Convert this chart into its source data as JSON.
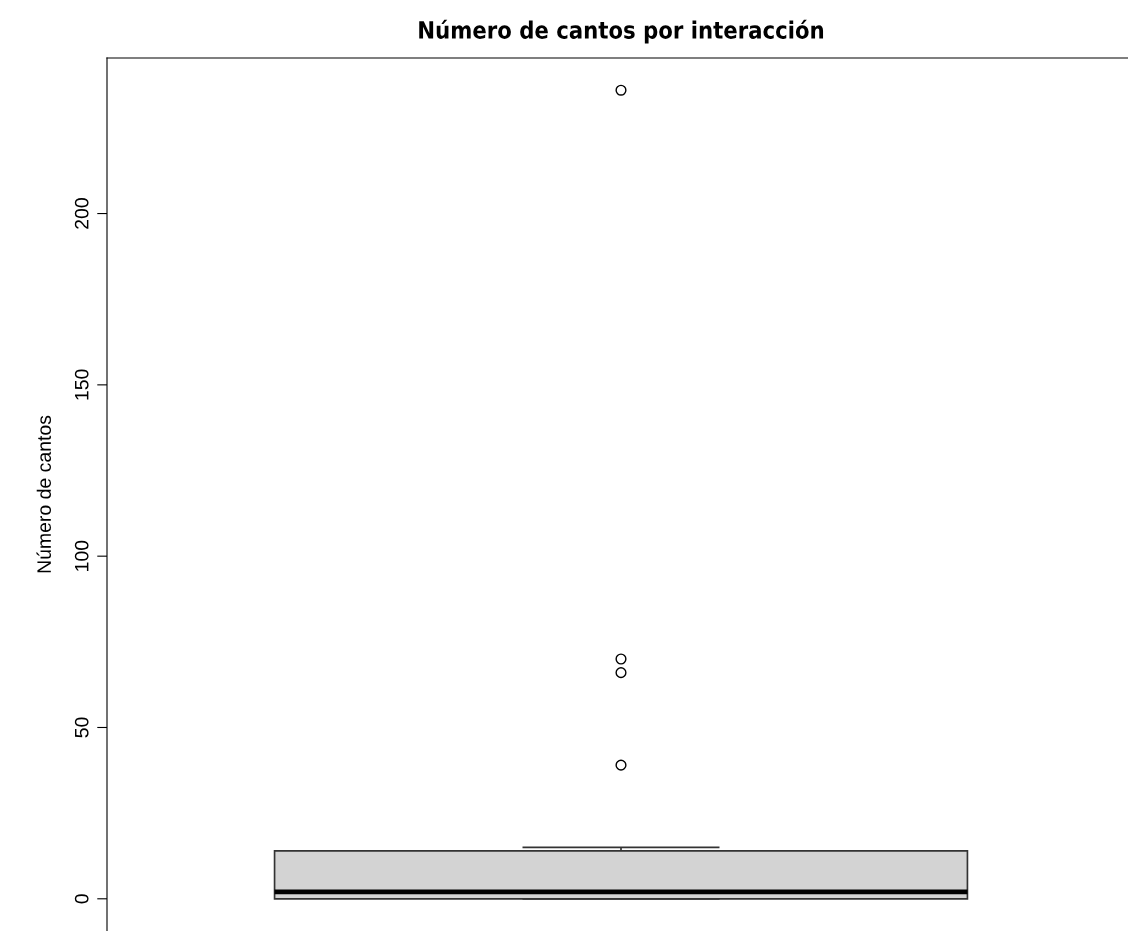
{
  "chart_data": {
    "type": "box",
    "title": "Número de cantos por interacción",
    "ylabel": "Número de cantos",
    "categories": [
      null
    ],
    "boxes": [
      {
        "low": 0,
        "q1": 0,
        "median": 2,
        "q3": 14,
        "high": 15,
        "outliers": [
          39,
          66,
          70,
          236
        ]
      }
    ],
    "color": "#d3d3d3",
    "ylim": [
      -9.4,
      245.4
    ],
    "yticks": [
      0,
      50,
      100,
      150,
      200
    ],
    "tick_labels": "y",
    "grid": false
  }
}
